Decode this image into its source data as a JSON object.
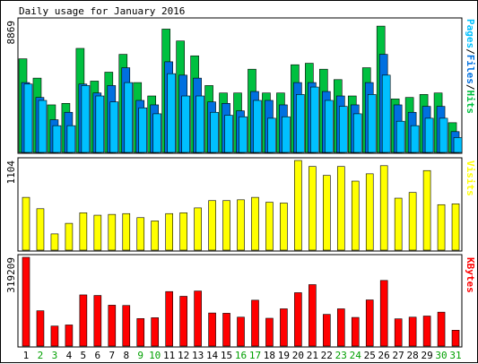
{
  "title": "Daily usage for January 2016",
  "colors": {
    "hits": "#00c040",
    "files": "#0070e0",
    "pages": "#00c0ff",
    "visits": "#ffff00",
    "kbytes": "#ff0000",
    "weekend_day_label": "#00a000",
    "weekday_label": "#000000"
  },
  "chart_data": [
    {
      "type": "bar",
      "panel": "hits-files-pages",
      "ylabel_right": [
        "Pages",
        "/",
        "Files",
        "/",
        "Hits"
      ],
      "ymax_label": "8869",
      "ylim": [
        0,
        8869
      ],
      "categories": [
        "1",
        "2",
        "3",
        "4",
        "5",
        "6",
        "7",
        "8",
        "9",
        "10",
        "11",
        "12",
        "13",
        "14",
        "15",
        "16",
        "17",
        "18",
        "19",
        "20",
        "21",
        "22",
        "23",
        "24",
        "25",
        "26",
        "27",
        "28",
        "29",
        "30",
        "31"
      ],
      "weekend_days": [
        2,
        3,
        9,
        10,
        16,
        17,
        23,
        24,
        30,
        31
      ],
      "series": [
        {
          "name": "Hits",
          "values": [
            6300,
            5000,
            3200,
            3300,
            7000,
            4800,
            5400,
            6600,
            4700,
            3800,
            8300,
            7500,
            6500,
            4500,
            4000,
            4000,
            5600,
            4000,
            4000,
            5900,
            6000,
            5600,
            4900,
            3800,
            5700,
            8500,
            3600,
            3700,
            3900,
            4000,
            2000
          ]
        },
        {
          "name": "Files",
          "values": [
            4700,
            3700,
            2200,
            2700,
            4600,
            4000,
            4500,
            5700,
            3500,
            3200,
            6100,
            5200,
            5000,
            3400,
            3300,
            2800,
            4100,
            3500,
            3200,
            4700,
            4700,
            4100,
            3800,
            3200,
            4700,
            6600,
            3200,
            2700,
            3100,
            3100,
            1400
          ]
        },
        {
          "name": "Pages",
          "values": [
            4600,
            3500,
            1800,
            1800,
            4500,
            3800,
            3400,
            4700,
            3000,
            2600,
            5300,
            3800,
            3800,
            2700,
            2500,
            2400,
            3500,
            2300,
            2400,
            3900,
            4400,
            3500,
            3100,
            2600,
            3900,
            5200,
            2100,
            1800,
            2300,
            2300,
            1000
          ]
        }
      ]
    },
    {
      "type": "bar",
      "panel": "visits",
      "ylabel_right": [
        "Visits"
      ],
      "ymax_label": "1104",
      "ylim": [
        0,
        1104
      ],
      "categories": [
        "1",
        "2",
        "3",
        "4",
        "5",
        "6",
        "7",
        "8",
        "9",
        "10",
        "11",
        "12",
        "13",
        "14",
        "15",
        "16",
        "17",
        "18",
        "19",
        "20",
        "21",
        "22",
        "23",
        "24",
        "25",
        "26",
        "27",
        "28",
        "29",
        "30",
        "31"
      ],
      "series": [
        {
          "name": "Visits",
          "values": [
            650,
            510,
            200,
            330,
            460,
            430,
            440,
            450,
            400,
            360,
            450,
            460,
            520,
            610,
            610,
            620,
            650,
            590,
            580,
            1104,
            1030,
            920,
            1030,
            850,
            940,
            1040,
            640,
            710,
            980,
            560,
            570
          ]
        }
      ]
    },
    {
      "type": "bar",
      "panel": "kbytes",
      "ylabel_right": [
        "KBytes"
      ],
      "ymax_label": "319209",
      "ylim": [
        0,
        319209
      ],
      "categories": [
        "1",
        "2",
        "3",
        "4",
        "5",
        "6",
        "7",
        "8",
        "9",
        "10",
        "11",
        "12",
        "13",
        "14",
        "15",
        "16",
        "17",
        "18",
        "19",
        "20",
        "21",
        "22",
        "23",
        "24",
        "25",
        "26",
        "27",
        "28",
        "29",
        "30",
        "31"
      ],
      "series": [
        {
          "name": "KBytes",
          "values": [
            319209,
            127000,
            72000,
            76000,
            184000,
            182000,
            147000,
            146000,
            99000,
            102000,
            196000,
            179000,
            198000,
            119000,
            118000,
            104000,
            165000,
            100000,
            134000,
            192000,
            221000,
            114000,
            134000,
            103000,
            166000,
            236000,
            98000,
            104000,
            108000,
            122000,
            57000
          ]
        }
      ]
    }
  ]
}
